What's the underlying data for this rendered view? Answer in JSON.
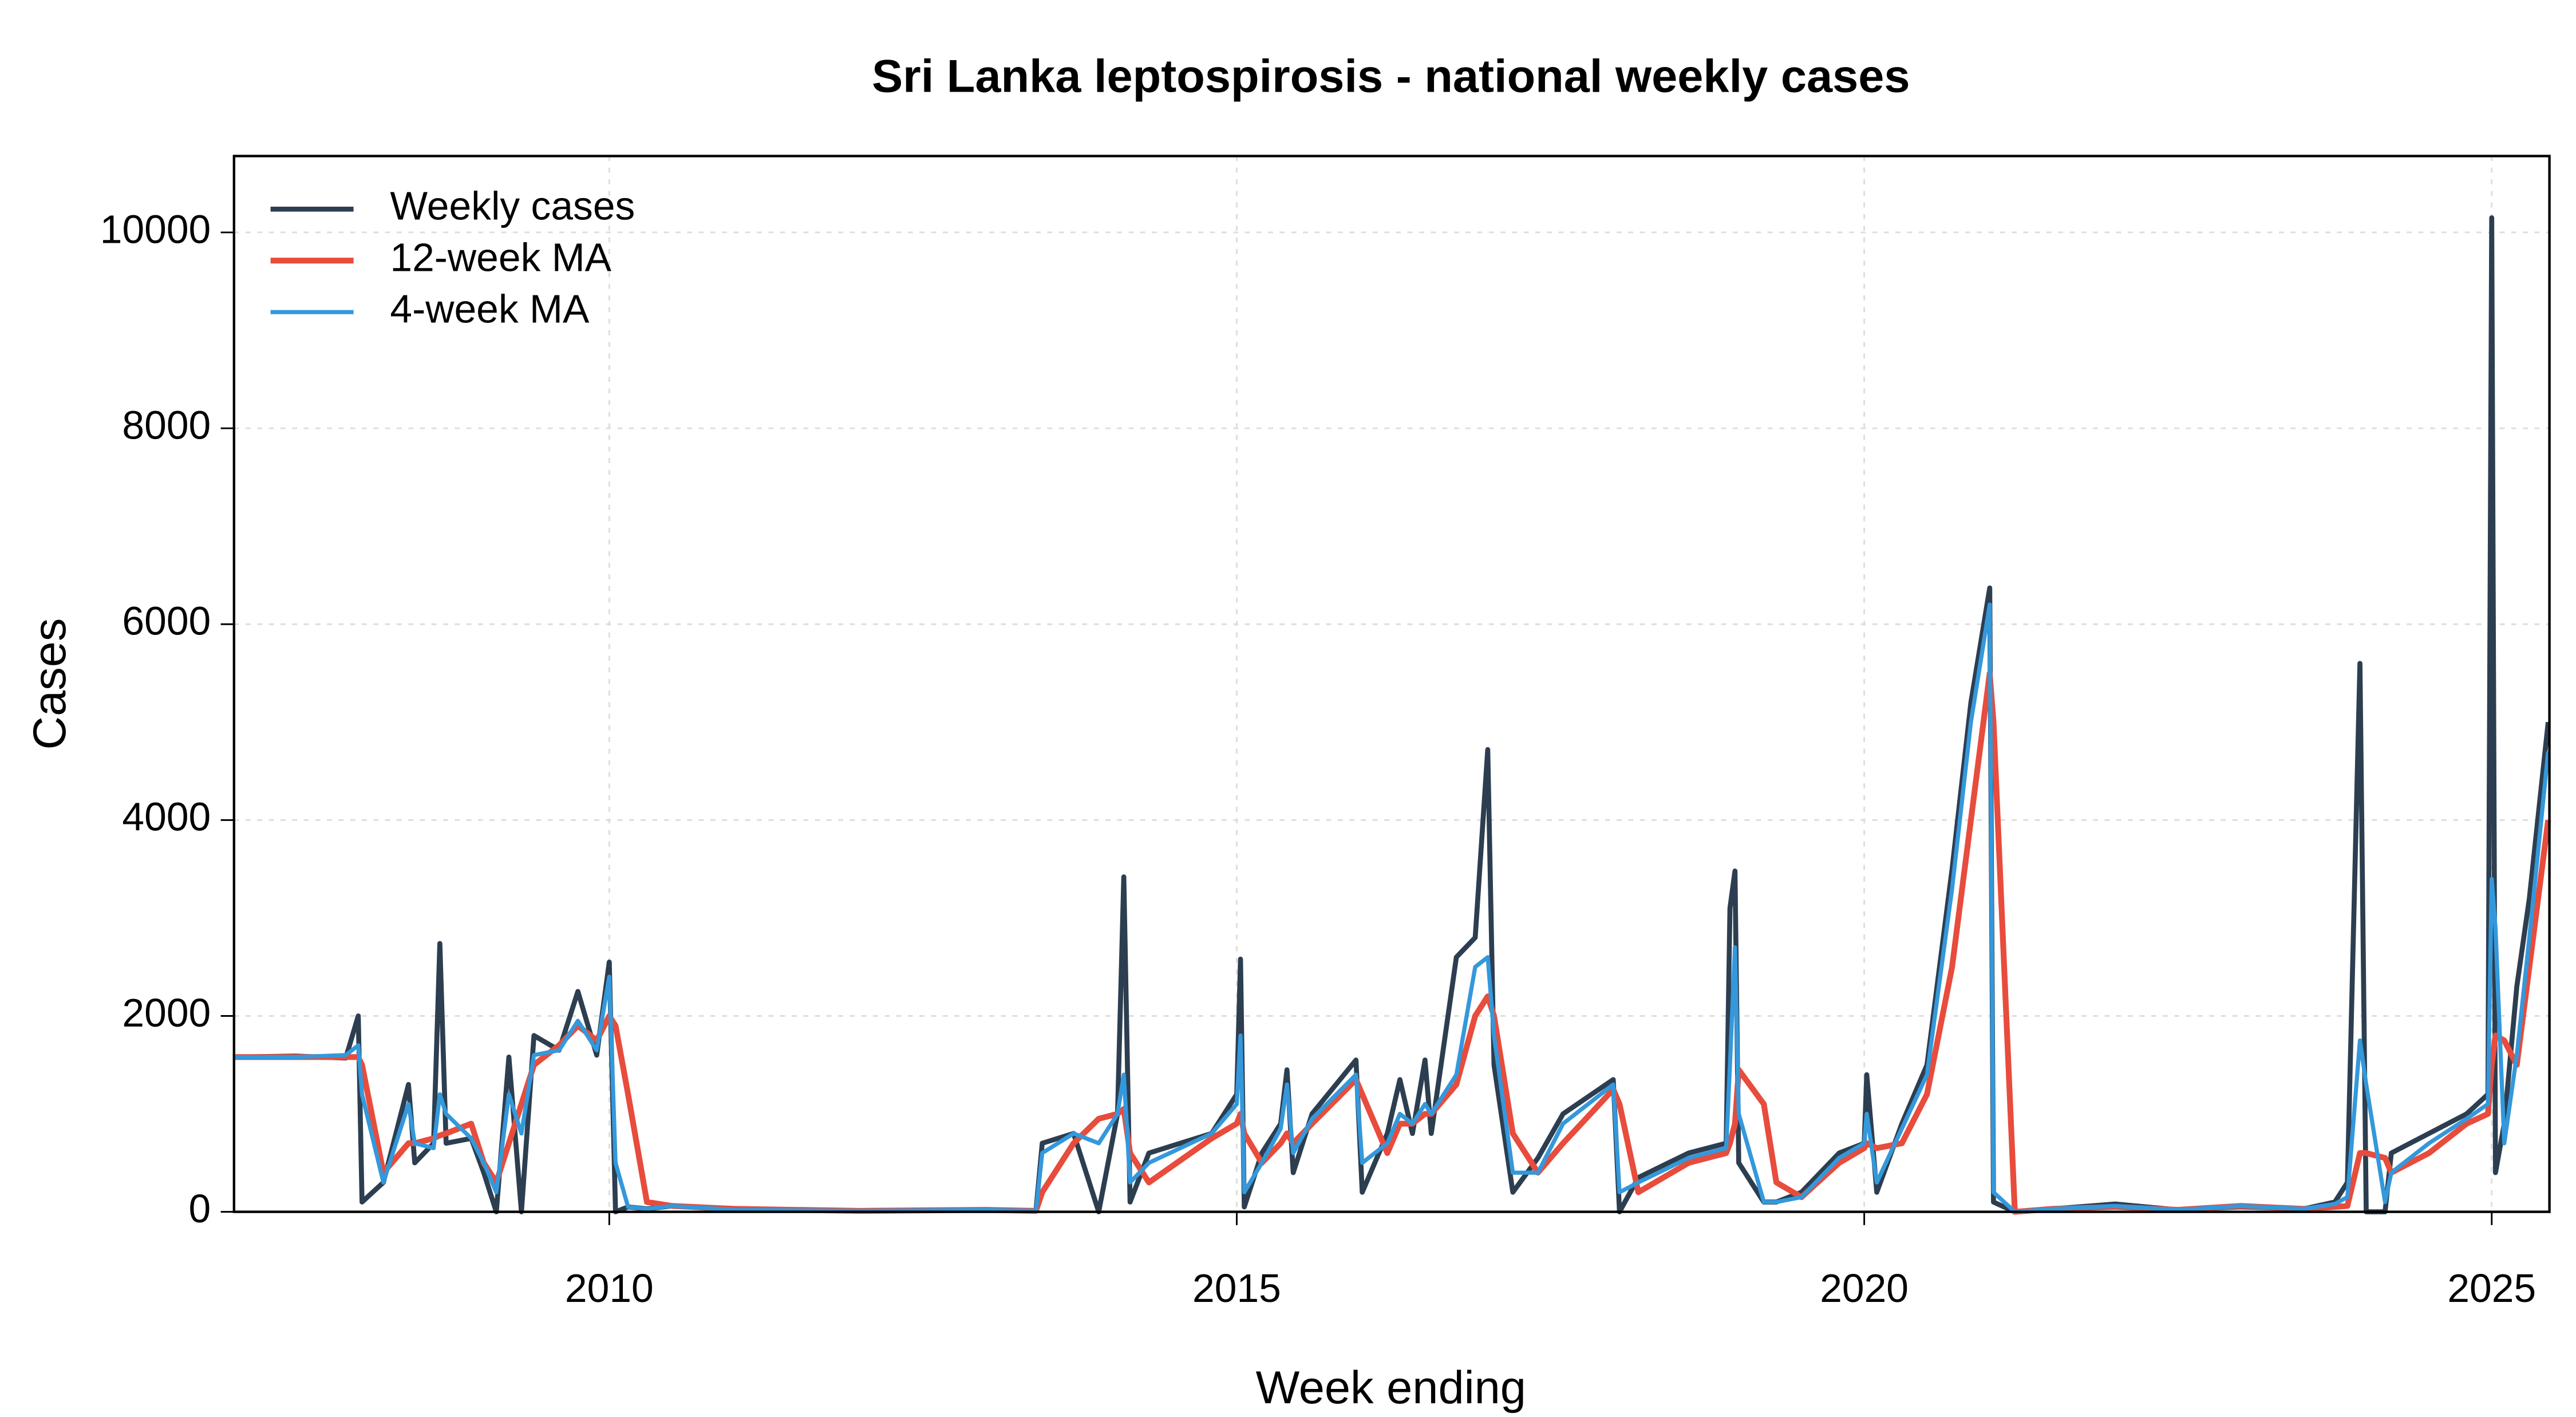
{
  "chart_data": {
    "type": "line",
    "title": "Sri Lanka leptospirosis - national weekly cases",
    "x_label": "Week ending",
    "y_label": "Cases",
    "x": [
      2007.0,
      2007.5,
      2007.9,
      2008.0,
      2008.03,
      2008.2,
      2008.4,
      2008.45,
      2008.6,
      2008.65,
      2008.7,
      2008.9,
      2009.0,
      2009.1,
      2009.2,
      2009.3,
      2009.4,
      2009.6,
      2009.75,
      2009.9,
      2010.0,
      2010.05,
      2010.15,
      2010.3,
      2010.5,
      2011.0,
      2012.0,
      2013.0,
      2013.4,
      2013.45,
      2013.7,
      2013.9,
      2014.05,
      2014.1,
      2014.15,
      2014.3,
      2014.8,
      2015.0,
      2015.03,
      2015.06,
      2015.2,
      2015.35,
      2015.4,
      2015.45,
      2015.6,
      2015.95,
      2016.0,
      2016.2,
      2016.3,
      2016.4,
      2016.5,
      2016.55,
      2016.75,
      2016.9,
      2017.0,
      2017.05,
      2017.2,
      2017.4,
      2017.6,
      2018.0,
      2018.05,
      2018.2,
      2018.6,
      2018.9,
      2018.93,
      2018.97,
      2019.0,
      2019.2,
      2019.3,
      2019.5,
      2019.8,
      2020.0,
      2020.02,
      2020.1,
      2020.3,
      2020.5,
      2020.7,
      2020.85,
      2021.0,
      2021.03,
      2021.2,
      2021.5,
      2022.0,
      2022.5,
      2023.0,
      2023.5,
      2023.75,
      2023.85,
      2023.95,
      2024.0,
      2024.15,
      2024.2,
      2024.5,
      2024.8,
      2024.97,
      2025.0,
      2025.03,
      2025.1,
      2025.2,
      2025.3,
      2025.45
    ],
    "series": [
      {
        "name": "Weekly cases",
        "color": "#2c3e50",
        "values": [
          1580,
          1590,
          1570,
          2000,
          100,
          300,
          1300,
          500,
          700,
          2740,
          700,
          750,
          400,
          0,
          1580,
          0,
          1800,
          1650,
          2250,
          1600,
          2550,
          0,
          50,
          30,
          60,
          20,
          10,
          20,
          10,
          700,
          800,
          0,
          1000,
          3420,
          100,
          600,
          800,
          1200,
          2580,
          50,
          600,
          900,
          1450,
          400,
          1000,
          1550,
          200,
          800,
          1350,
          800,
          1550,
          800,
          2600,
          2800,
          4720,
          1500,
          200,
          550,
          1000,
          1350,
          0,
          350,
          600,
          700,
          3100,
          3480,
          500,
          100,
          100,
          200,
          600,
          700,
          1400,
          200,
          900,
          1500,
          3500,
          5200,
          6370,
          100,
          0,
          30,
          80,
          20,
          50,
          30,
          100,
          300,
          5600,
          0,
          0,
          600,
          800,
          1000,
          1200,
          10150,
          400,
          900,
          2300,
          3200,
          5000
        ]
      },
      {
        "name": "12-week MA",
        "color": "#e74c3c",
        "values": [
          1580,
          1580,
          1580,
          1580,
          1500,
          400,
          700,
          700,
          750,
          780,
          800,
          900,
          500,
          300,
          700,
          1100,
          1500,
          1700,
          1900,
          1750,
          2000,
          1900,
          1200,
          100,
          60,
          30,
          10,
          20,
          10,
          200,
          700,
          950,
          1000,
          1050,
          600,
          300,
          750,
          900,
          1000,
          800,
          500,
          700,
          800,
          700,
          900,
          1350,
          1200,
          600,
          900,
          900,
          1000,
          1000,
          1300,
          2000,
          2200,
          2000,
          800,
          400,
          700,
          1250,
          1100,
          200,
          500,
          600,
          700,
          900,
          1450,
          1100,
          300,
          150,
          500,
          650,
          700,
          650,
          700,
          1200,
          2500,
          4000,
          5500,
          5000,
          0,
          30,
          50,
          20,
          60,
          30,
          50,
          60,
          600,
          600,
          550,
          400,
          600,
          900,
          1000,
          1500,
          1800,
          1750,
          1500,
          2500,
          4000
        ]
      },
      {
        "name": "4-week MA",
        "color": "#3498db",
        "values": [
          1580,
          1580,
          1600,
          1700,
          1200,
          300,
          1100,
          700,
          650,
          1200,
          1000,
          750,
          500,
          200,
          1200,
          800,
          1600,
          1650,
          1950,
          1650,
          2400,
          500,
          50,
          30,
          60,
          20,
          10,
          20,
          10,
          600,
          800,
          700,
          1000,
          1400,
          300,
          500,
          800,
          1100,
          1800,
          200,
          500,
          850,
          1300,
          600,
          950,
          1400,
          500,
          700,
          1000,
          900,
          1100,
          1000,
          1400,
          2500,
          2600,
          1800,
          400,
          400,
          900,
          1300,
          200,
          300,
          550,
          650,
          1500,
          2700,
          1000,
          100,
          100,
          150,
          550,
          700,
          1000,
          300,
          850,
          1400,
          3300,
          5000,
          6200,
          200,
          0,
          30,
          60,
          20,
          60,
          30,
          80,
          150,
          1750,
          1300,
          100,
          400,
          700,
          950,
          1100,
          3400,
          2900,
          700,
          1600,
          2800,
          4700
        ]
      }
    ],
    "xlim": [
      2007.01,
      2025.46
    ],
    "xticks": [
      2010,
      2015,
      2020,
      2025
    ],
    "ylim": [
      0,
      10780
    ],
    "yticks": [
      0,
      2000,
      4000,
      6000,
      8000,
      10000
    ],
    "grid": true,
    "legend": "top-left"
  }
}
